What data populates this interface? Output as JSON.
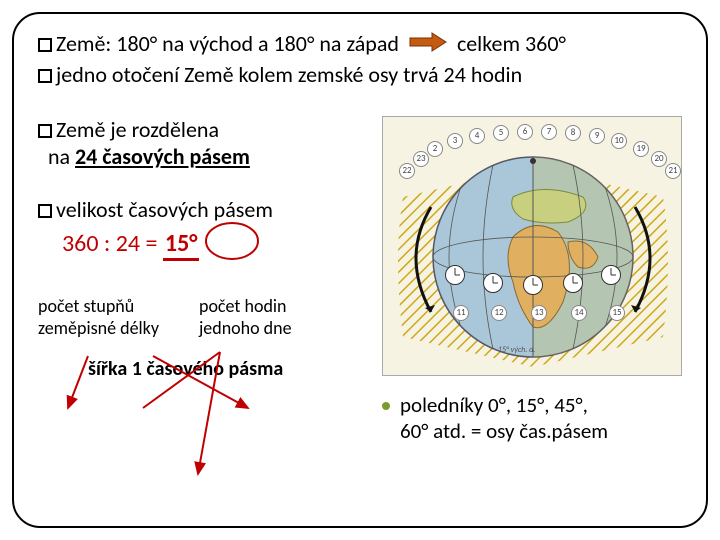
{
  "top": {
    "line1_a": "Země: 180° na východ a 180° na západ",
    "line1_b": "celkem 360°",
    "line2": "jedno otočení Země kolem zemské osy trvá 24 hodin"
  },
  "left": {
    "p1_a": "Země je rozdělena",
    "p1_b": "na ",
    "p1_c": "24 časových pásem",
    "p2": "velikost časových pásem",
    "calc_lhs": "360 : 24 = ",
    "calc_res": "15°",
    "lab1_l1": "počet stupňů",
    "lab1_l2": "zeměpisné délky",
    "lab2_l1": "počet hodin",
    "lab2_l2": "jednoho dne",
    "bottom": "šířka 1 časového pásma"
  },
  "right": {
    "bullet_a": "poledníky 0°, 15°, 45°,",
    "bullet_b": "60° atd. = osy čas.pásem"
  },
  "globe": {
    "numbers_top": [
      "2",
      "3",
      "4",
      "5",
      "6",
      "7",
      "8",
      "9",
      "10",
      "19",
      "20",
      "21",
      "22",
      "23"
    ],
    "mid_nums": [
      "11",
      "12",
      "13",
      "14",
      "15"
    ],
    "equator_label": "15° vých. d.",
    "colors": {
      "ocean": "#a9c7d8",
      "land_africa": "#e0b060",
      "land_europe": "#c8d080",
      "shadow": "#d8c040",
      "hatch": "#c8a000",
      "background": "#f7f3e3",
      "meridian": "#555555",
      "arrow": "#111111"
    }
  },
  "colors": {
    "text": "#000000",
    "red": "#c00000",
    "arrow_fill": "#c55a11",
    "bullet_green": "#7a9b2e"
  }
}
